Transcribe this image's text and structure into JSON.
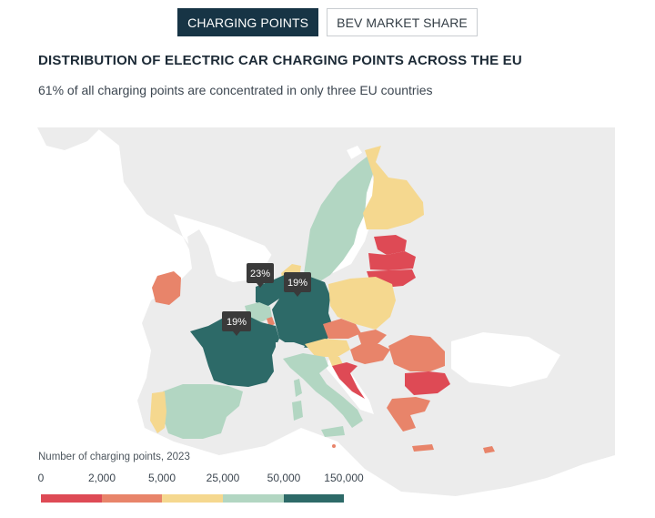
{
  "tabs": [
    {
      "label": "CHARGING POINTS",
      "active": true
    },
    {
      "label": "BEV MARKET SHARE",
      "active": false
    }
  ],
  "title": "DISTRIBUTION OF ELECTRIC CAR CHARGING POINTS ACROSS THE EU",
  "subtitle": "61% of all charging points are concentrated in only three EU countries",
  "map": {
    "callouts": [
      {
        "label": "23%",
        "country": "Netherlands"
      },
      {
        "label": "19%",
        "country": "Germany"
      },
      {
        "label": "19%",
        "country": "France"
      }
    ]
  },
  "legend": {
    "title": "Number of charging points, 2023",
    "labels": [
      "0",
      "2,000",
      "5,000",
      "25,000",
      "50,000",
      "150,000"
    ],
    "colors": [
      "#de4a55",
      "#e8846a",
      "#f5d88f",
      "#b2d6c2",
      "#2d6a68"
    ]
  },
  "colors": {
    "tab_active_bg": "#173445",
    "land_non_eu": "#ececec",
    "sea": "#ffffff",
    "callout_bg": "#3a3a3a"
  }
}
